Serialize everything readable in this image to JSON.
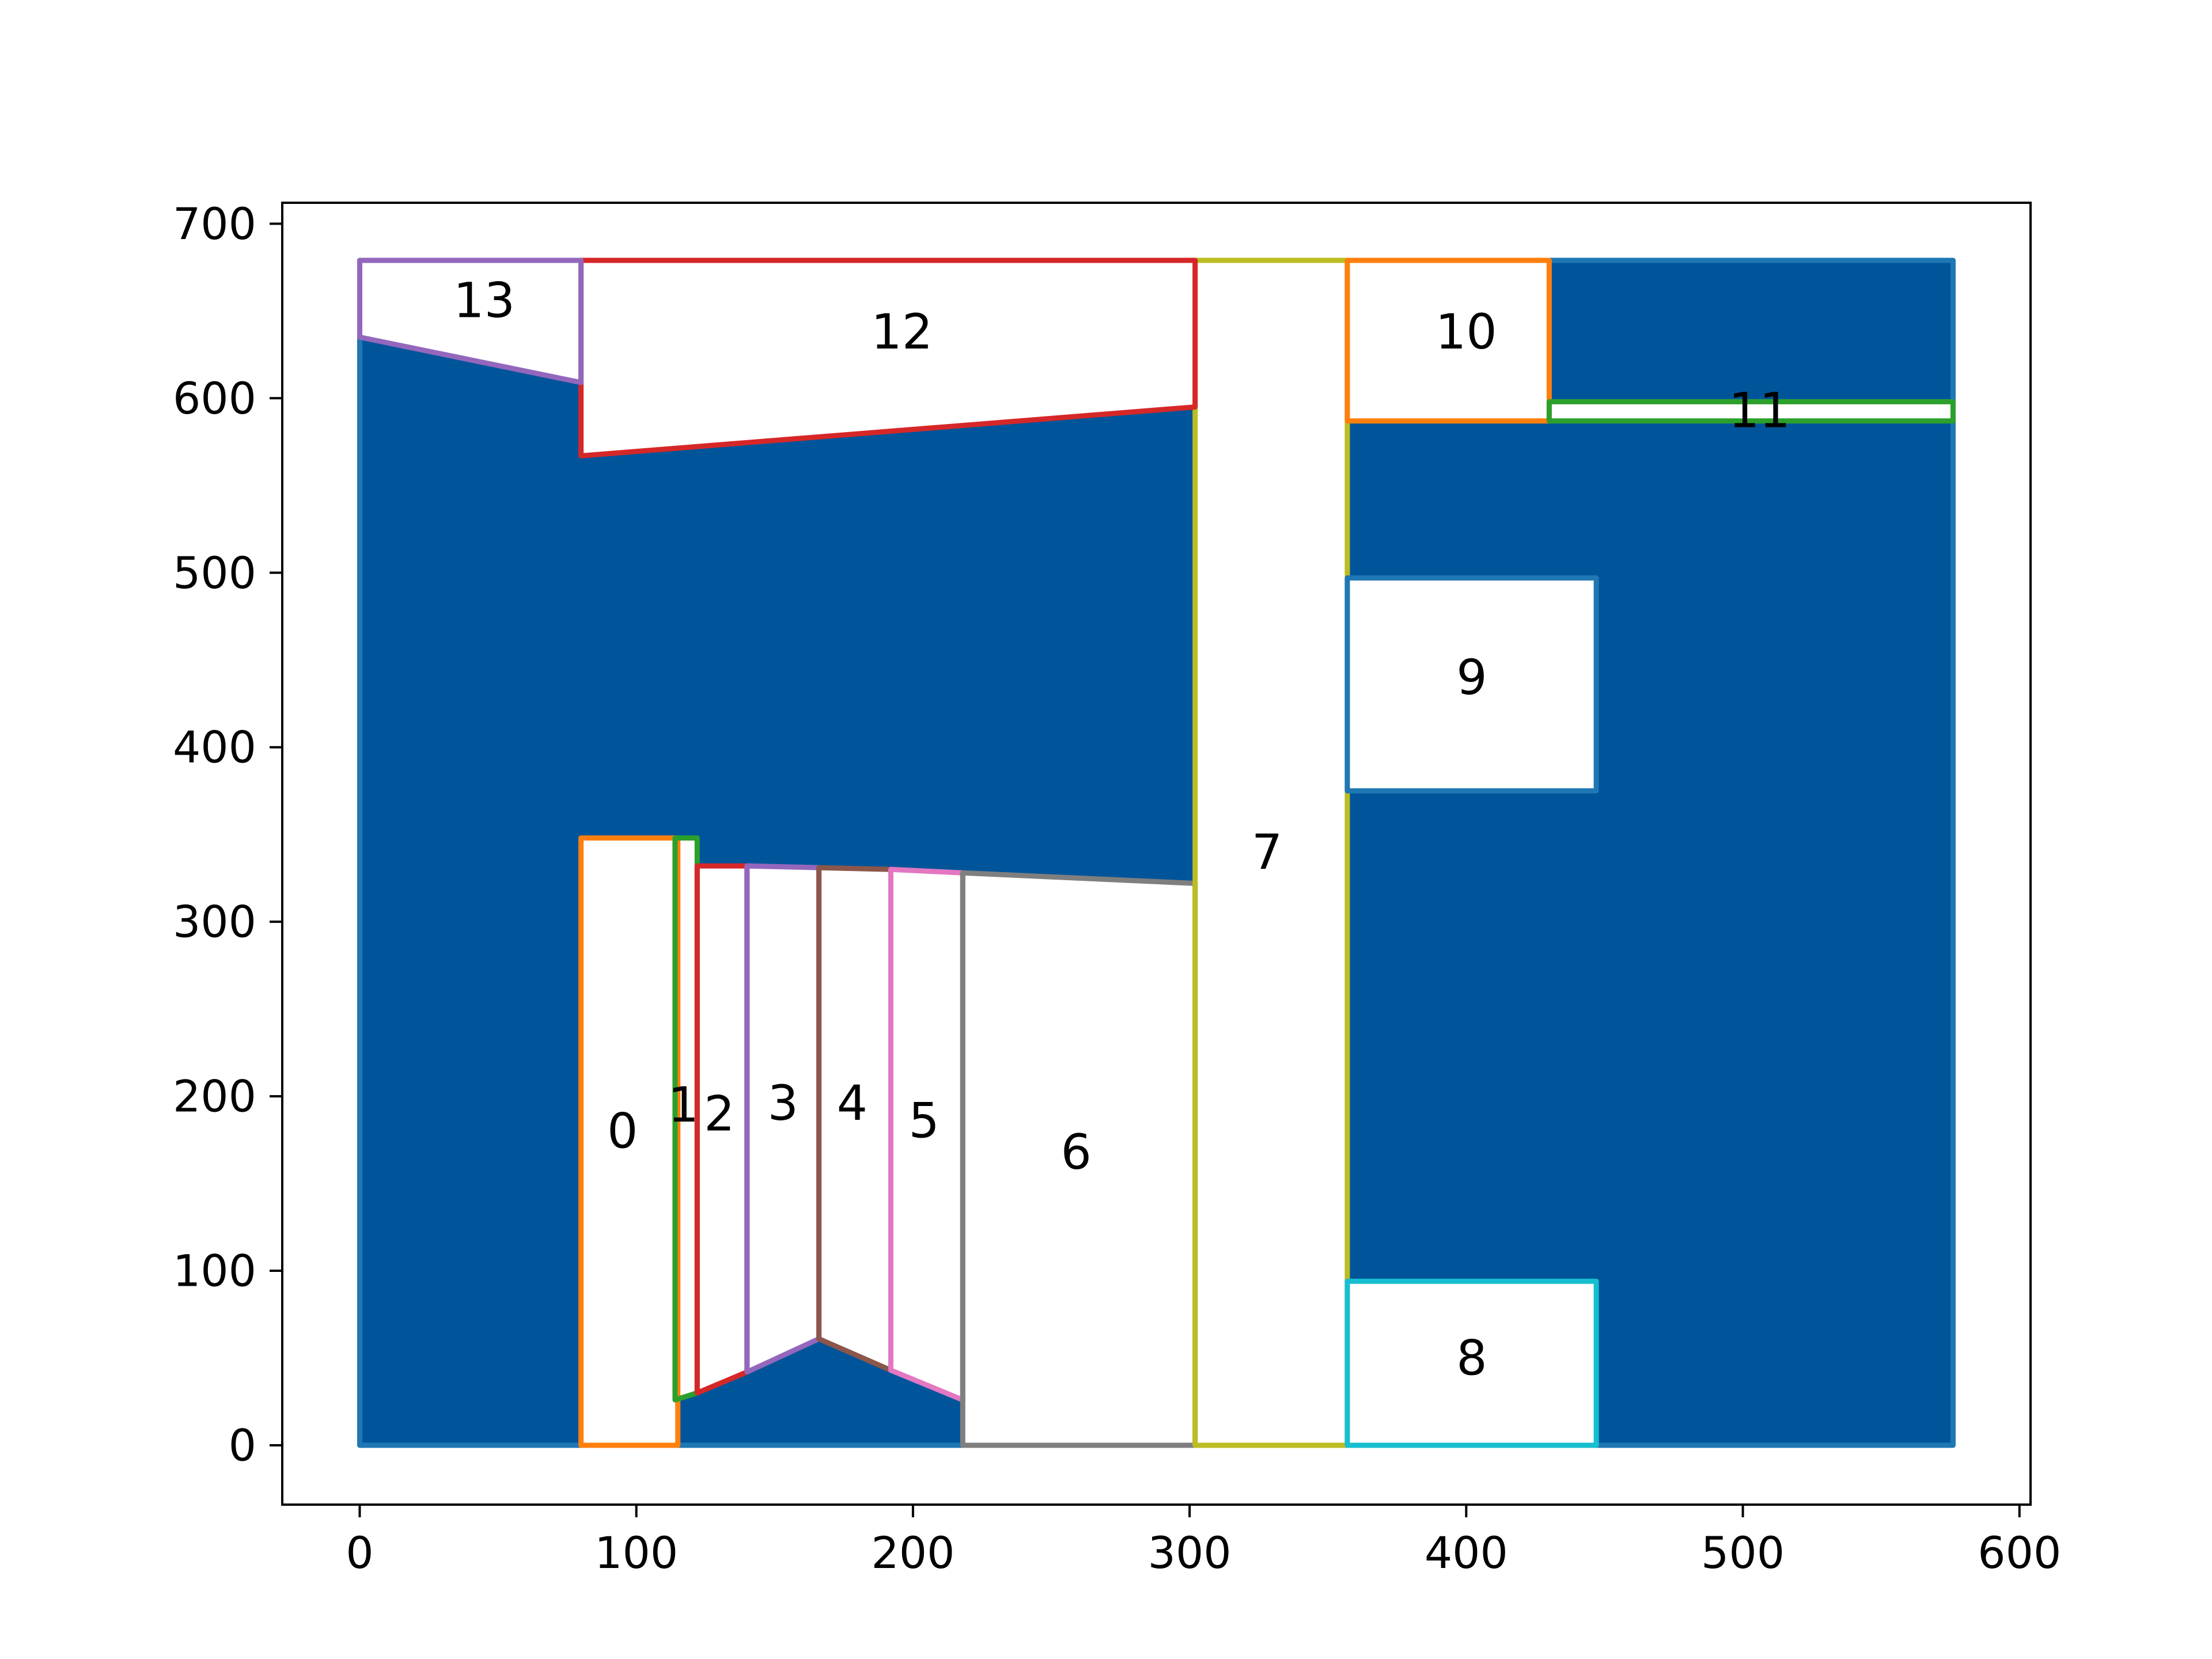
{
  "chart_data": {
    "type": "polygon-map",
    "xlim": [
      -28,
      604
    ],
    "ylim": [
      -34,
      712
    ],
    "xticks": [
      0,
      100,
      200,
      300,
      400,
      500,
      600
    ],
    "yticks": [
      0,
      100,
      200,
      300,
      400,
      500,
      600,
      700
    ],
    "grid": false,
    "background": {
      "color": "#00559a",
      "edge": "#1f77b4",
      "polygon": [
        [
          0,
          0
        ],
        [
          576,
          0
        ],
        [
          576,
          679
        ],
        [
          0,
          679
        ]
      ]
    },
    "regions": [
      {
        "label": "0",
        "color": "#ff7f0e",
        "label_at": [
          95,
          180
        ],
        "polygon": [
          [
            80,
            0
          ],
          [
            115,
            0
          ],
          [
            115,
            348
          ],
          [
            80,
            348
          ]
        ]
      },
      {
        "label": "1",
        "color": "#2ca02c",
        "label_at": [
          117,
          195
        ],
        "polygon": [
          [
            114,
            26
          ],
          [
            122,
            30
          ],
          [
            122,
            348
          ],
          [
            114,
            348
          ]
        ]
      },
      {
        "label": "2",
        "color": "#d62728",
        "label_at": [
          130,
          190
        ],
        "polygon": [
          [
            122,
            30
          ],
          [
            140,
            42
          ],
          [
            140,
            332
          ],
          [
            122,
            332
          ]
        ]
      },
      {
        "label": "3",
        "color": "#9467bd",
        "label_at": [
          153,
          196
        ],
        "polygon": [
          [
            140,
            42
          ],
          [
            166,
            61
          ],
          [
            166,
            331
          ],
          [
            140,
            332
          ]
        ]
      },
      {
        "label": "4",
        "color": "#8c564b",
        "label_at": [
          178,
          196
        ],
        "polygon": [
          [
            166,
            61
          ],
          [
            192,
            43
          ],
          [
            192,
            330
          ],
          [
            166,
            331
          ]
        ]
      },
      {
        "label": "5",
        "color": "#e377c2",
        "label_at": [
          204,
          186
        ],
        "polygon": [
          [
            192,
            43
          ],
          [
            218,
            26
          ],
          [
            218,
            328
          ],
          [
            192,
            330
          ]
        ]
      },
      {
        "label": "6",
        "color": "#7f7f7f",
        "label_at": [
          259,
          168
        ],
        "polygon": [
          [
            218,
            0
          ],
          [
            302,
            0
          ],
          [
            302,
            322
          ],
          [
            218,
            328
          ]
        ]
      },
      {
        "label": "7",
        "color": "#bcbd22",
        "label_at": [
          328,
          340
        ],
        "polygon": [
          [
            302,
            0
          ],
          [
            357,
            0
          ],
          [
            357,
            679
          ],
          [
            302,
            679
          ]
        ]
      },
      {
        "label": "8",
        "color": "#17becf",
        "label_at": [
          402,
          50
        ],
        "polygon": [
          [
            357,
            0
          ],
          [
            447,
            0
          ],
          [
            447,
            94
          ],
          [
            357,
            94
          ]
        ]
      },
      {
        "label": "9",
        "color": "#1f77b4",
        "label_at": [
          402,
          440
        ],
        "polygon": [
          [
            357,
            375
          ],
          [
            447,
            375
          ],
          [
            447,
            497
          ],
          [
            357,
            497
          ]
        ]
      },
      {
        "label": "10",
        "color": "#ff7f0e",
        "label_at": [
          400,
          638
        ],
        "polygon": [
          [
            357,
            587
          ],
          [
            430,
            587
          ],
          [
            430,
            679
          ],
          [
            357,
            679
          ]
        ]
      },
      {
        "label": "11",
        "color": "#2ca02c",
        "label_at": [
          506,
          593
        ],
        "polygon": [
          [
            430,
            587
          ],
          [
            576,
            587
          ],
          [
            576,
            598
          ],
          [
            430,
            598
          ]
        ]
      },
      {
        "label": "12",
        "color": "#d62728",
        "label_at": [
          196,
          638
        ],
        "polygon": [
          [
            80,
            567
          ],
          [
            302,
            595
          ],
          [
            302,
            679
          ],
          [
            80,
            679
          ]
        ]
      },
      {
        "label": "13",
        "color": "#9467bd",
        "label_at": [
          45,
          656
        ],
        "polygon": [
          [
            0,
            635
          ],
          [
            80,
            609
          ],
          [
            80,
            679
          ],
          [
            0,
            679
          ]
        ]
      }
    ]
  }
}
